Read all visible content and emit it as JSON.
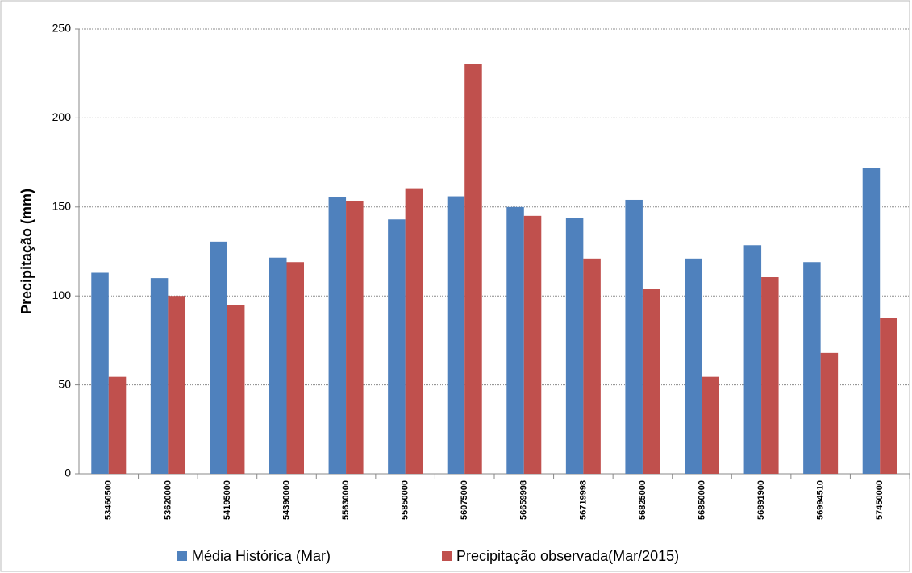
{
  "chart_data": {
    "type": "bar",
    "y_label": "Precipitação (mm)",
    "categories": [
      "53460500",
      "53620000",
      "54195000",
      "54390000",
      "55630000",
      "55850000",
      "56075000",
      "56659998",
      "56719998",
      "56825000",
      "56850000",
      "56891900",
      "56994510",
      "57450000"
    ],
    "series": [
      {
        "name": "Média Histórica (Mar)",
        "color": "#4f81bd",
        "values": [
          113,
          110,
          130.5,
          121.5,
          155.5,
          143,
          156,
          150,
          144,
          154,
          121,
          128.5,
          119,
          172
        ]
      },
      {
        "name": "Precipitação observada(Mar/2015)",
        "color": "#c0504d",
        "values": [
          54.5,
          100,
          95,
          119,
          153.5,
          160.5,
          230.5,
          145,
          121,
          104,
          54.5,
          110.5,
          68,
          87.5
        ]
      }
    ],
    "ylim": [
      0,
      250
    ],
    "yticks": [
      0,
      50,
      100,
      150,
      200,
      250
    ],
    "grid": true,
    "legend": "bottom"
  }
}
